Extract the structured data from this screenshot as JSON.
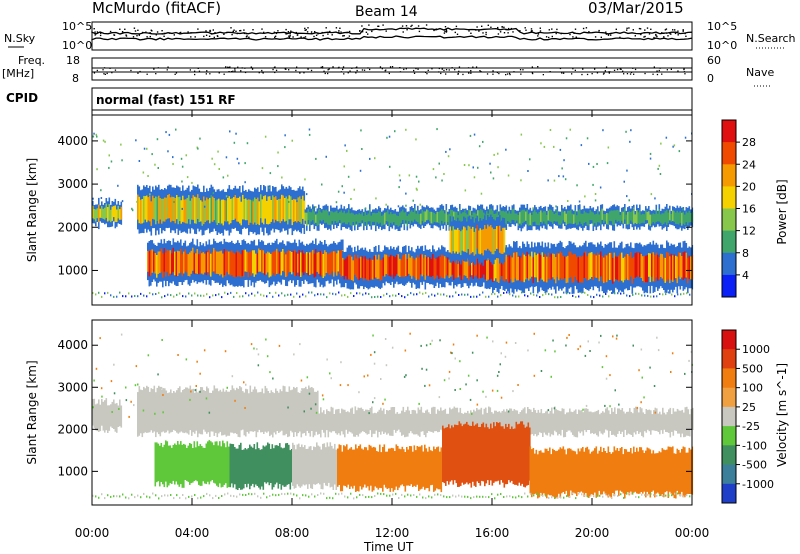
{
  "header": {
    "station": "McMurdo (fitACF)",
    "beam": "Beam 14",
    "date": "03/Mar/2015",
    "cpid_label": "CPID",
    "cpid_value": "normal (fast) 151 RF"
  },
  "status_panels": {
    "nsky_label": "N.Sky",
    "nsearch_label": "N.Search",
    "noise_top": "10^5",
    "noise_bottom": "10^0",
    "freq_label": "Freq.",
    "freq_unit": "[MHz]",
    "freq_ticks": [
      "18",
      "8"
    ],
    "nave_label": "Nave",
    "nave_ticks": [
      "60",
      "0"
    ]
  },
  "chart_data": [
    {
      "type": "heatmap",
      "panel": "power",
      "ylabel": "Slant Range [km]",
      "yticks": [
        1000,
        2000,
        3000,
        4000
      ],
      "ylim": [
        200,
        4600
      ],
      "xlim": [
        0,
        24
      ],
      "colorbar": {
        "label": "Power [dB]",
        "ticks": [
          "4",
          "8",
          "12",
          "16",
          "20",
          "24",
          "28"
        ],
        "colors": [
          "#0b1ff7",
          "#2c6fd0",
          "#3fa56a",
          "#87c84c",
          "#f5d100",
          "#f59a00",
          "#f04a00",
          "#e01010"
        ]
      },
      "bands": [
        {
          "t0": 0.0,
          "t1": 1.2,
          "r0": 2050,
          "r1": 2600,
          "level": 0.55
        },
        {
          "t0": 1.8,
          "t1": 8.5,
          "r0": 1900,
          "r1": 2900,
          "level": 0.55
        },
        {
          "t0": 8.5,
          "t1": 24.0,
          "r0": 2000,
          "r1": 2450,
          "level": 0.2
        },
        {
          "t0": 2.2,
          "t1": 10.0,
          "r0": 700,
          "r1": 1650,
          "level": 0.8
        },
        {
          "t0": 10.0,
          "t1": 16.0,
          "r0": 650,
          "r1": 1500,
          "level": 0.85
        },
        {
          "t0": 16.0,
          "t1": 24.0,
          "r0": 550,
          "r1": 1600,
          "level": 0.8
        },
        {
          "t0": 14.3,
          "t1": 16.5,
          "r0": 1200,
          "r1": 2200,
          "level": 0.6
        }
      ]
    },
    {
      "type": "heatmap",
      "panel": "velocity",
      "xlabel": "Time UT",
      "ylabel": "Slant Range [km]",
      "xticks": [
        "00:00",
        "04:00",
        "08:00",
        "12:00",
        "16:00",
        "20:00",
        "00:00"
      ],
      "yticks": [
        1000,
        2000,
        3000,
        4000
      ],
      "ylim": [
        200,
        4600
      ],
      "xlim": [
        0,
        24
      ],
      "colorbar": {
        "label": "Velocity [m s^-1]",
        "ticks": [
          "1000",
          "500",
          "100",
          "25",
          "-25",
          "-100",
          "-500",
          "-1000"
        ],
        "colors": [
          "#1f3fc8",
          "#3c7f9a",
          "#3f8f5f",
          "#5fc83a",
          "#c8c8c0",
          "#f0a040",
          "#f07d10",
          "#e04010",
          "#d81010"
        ]
      },
      "bands": [
        {
          "t0": 0.0,
          "t1": 1.2,
          "r0": 2000,
          "r1": 2650,
          "color": "#c8c8c0"
        },
        {
          "t0": 1.8,
          "t1": 9.0,
          "r0": 1900,
          "r1": 2950,
          "color": "#c8c8c0"
        },
        {
          "t0": 9.0,
          "t1": 24.0,
          "r0": 1900,
          "r1": 2450,
          "color": "#c8c8c0"
        },
        {
          "t0": 2.5,
          "t1": 5.5,
          "r0": 700,
          "r1": 1650,
          "color": "#5fc83a"
        },
        {
          "t0": 5.5,
          "t1": 8.0,
          "r0": 650,
          "r1": 1600,
          "color": "#3f8f5f"
        },
        {
          "t0": 8.0,
          "t1": 9.8,
          "r0": 650,
          "r1": 1600,
          "color": "#c8c8c0"
        },
        {
          "t0": 9.8,
          "t1": 14.0,
          "r0": 600,
          "r1": 1550,
          "color": "#f07d10"
        },
        {
          "t0": 14.0,
          "t1": 17.5,
          "r0": 700,
          "r1": 2100,
          "color": "#e05010"
        },
        {
          "t0": 17.5,
          "t1": 24.0,
          "r0": 450,
          "r1": 1500,
          "color": "#f07d10"
        }
      ]
    }
  ]
}
